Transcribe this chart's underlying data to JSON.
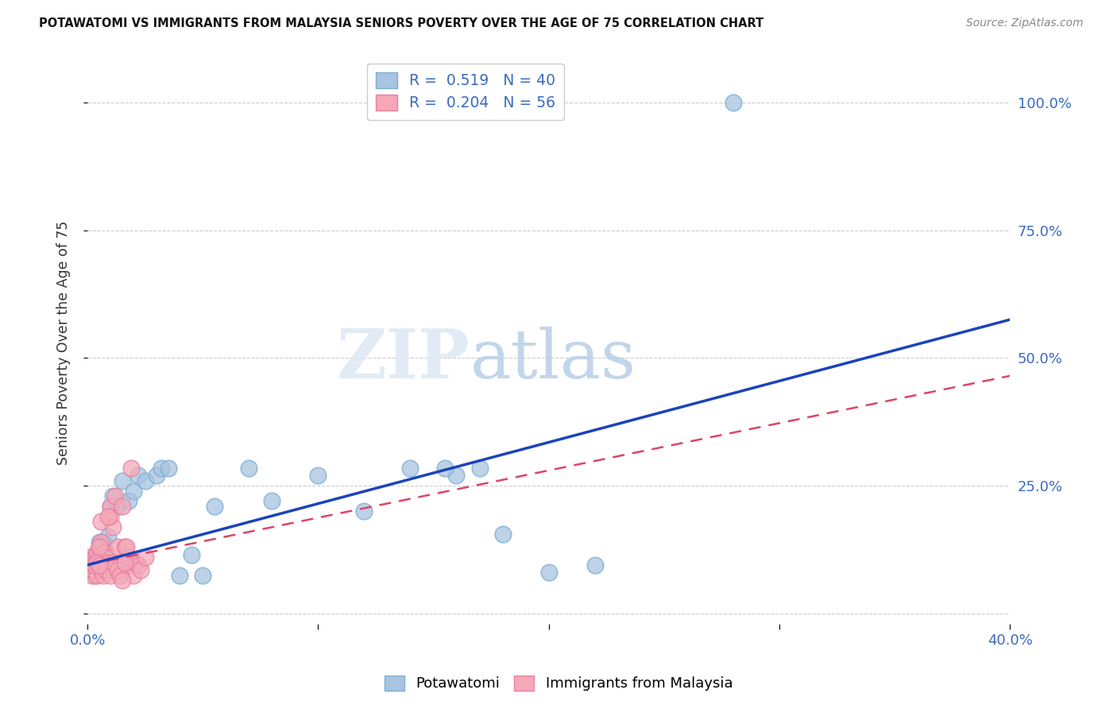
{
  "title": "POTAWATOMI VS IMMIGRANTS FROM MALAYSIA SENIORS POVERTY OVER THE AGE OF 75 CORRELATION CHART",
  "source": "Source: ZipAtlas.com",
  "ylabel": "Seniors Poverty Over the Age of 75",
  "watermark_zip": "ZIP",
  "watermark_atlas": "atlas",
  "xlim": [
    0.0,
    0.4
  ],
  "ylim": [
    -0.02,
    1.08
  ],
  "xticks": [
    0.0,
    0.1,
    0.2,
    0.3,
    0.4
  ],
  "xtick_labels": [
    "0.0%",
    "",
    "",
    "",
    "40.0%"
  ],
  "yticks": [
    0.0,
    0.25,
    0.5,
    0.75,
    1.0
  ],
  "ytick_labels_right": [
    "",
    "25.0%",
    "50.0%",
    "75.0%",
    "100.0%"
  ],
  "blue_R": 0.519,
  "blue_N": 40,
  "pink_R": 0.204,
  "pink_N": 56,
  "blue_color": "#a8c4e0",
  "blue_edge_color": "#7aafd4",
  "pink_color": "#f4a8b8",
  "pink_edge_color": "#e880a0",
  "blue_line_color": "#1a44bb",
  "pink_line_color": "#dd4466",
  "legend_labels": [
    "Potawatomi",
    "Immigrants from Malaysia"
  ],
  "blue_line_x0": 0.0,
  "blue_line_y0": 0.095,
  "blue_line_x1": 0.4,
  "blue_line_y1": 0.575,
  "pink_line_x0": 0.0,
  "pink_line_y0": 0.095,
  "pink_line_x1": 0.4,
  "pink_line_y1": 0.465,
  "blue_x": [
    0.001,
    0.002,
    0.002,
    0.003,
    0.003,
    0.004,
    0.004,
    0.005,
    0.006,
    0.006,
    0.007,
    0.008,
    0.009,
    0.01,
    0.011,
    0.013,
    0.015,
    0.018,
    0.02,
    0.022,
    0.025,
    0.03,
    0.032,
    0.035,
    0.04,
    0.045,
    0.05,
    0.055,
    0.07,
    0.08,
    0.1,
    0.12,
    0.14,
    0.16,
    0.18,
    0.2,
    0.22,
    0.155,
    0.17,
    0.28
  ],
  "blue_y": [
    0.095,
    0.085,
    0.105,
    0.075,
    0.11,
    0.12,
    0.095,
    0.14,
    0.1,
    0.13,
    0.14,
    0.12,
    0.15,
    0.21,
    0.23,
    0.21,
    0.26,
    0.22,
    0.24,
    0.27,
    0.26,
    0.27,
    0.285,
    0.285,
    0.075,
    0.115,
    0.075,
    0.21,
    0.285,
    0.22,
    0.27,
    0.2,
    0.285,
    0.27,
    0.155,
    0.08,
    0.095,
    0.285,
    0.285,
    1.0
  ],
  "pink_x": [
    0.0,
    0.0,
    0.001,
    0.001,
    0.001,
    0.002,
    0.002,
    0.002,
    0.003,
    0.003,
    0.003,
    0.004,
    0.004,
    0.005,
    0.005,
    0.005,
    0.006,
    0.006,
    0.007,
    0.007,
    0.008,
    0.008,
    0.009,
    0.009,
    0.01,
    0.01,
    0.011,
    0.012,
    0.013,
    0.014,
    0.015,
    0.016,
    0.017,
    0.018,
    0.019,
    0.02,
    0.021,
    0.022,
    0.023,
    0.025,
    0.003,
    0.004,
    0.005,
    0.006,
    0.007,
    0.008,
    0.009,
    0.01,
    0.011,
    0.012,
    0.013,
    0.014,
    0.015,
    0.016,
    0.017,
    0.005
  ],
  "pink_y": [
    0.095,
    0.1,
    0.085,
    0.095,
    0.11,
    0.075,
    0.1,
    0.085,
    0.095,
    0.11,
    0.1,
    0.12,
    0.075,
    0.13,
    0.095,
    0.11,
    0.085,
    0.14,
    0.1,
    0.095,
    0.12,
    0.11,
    0.1,
    0.085,
    0.21,
    0.19,
    0.17,
    0.23,
    0.13,
    0.095,
    0.21,
    0.13,
    0.095,
    0.11,
    0.285,
    0.075,
    0.1,
    0.095,
    0.085,
    0.11,
    0.095,
    0.1,
    0.13,
    0.18,
    0.075,
    0.085,
    0.19,
    0.075,
    0.1,
    0.095,
    0.085,
    0.075,
    0.065,
    0.1,
    0.13,
    0.095
  ]
}
